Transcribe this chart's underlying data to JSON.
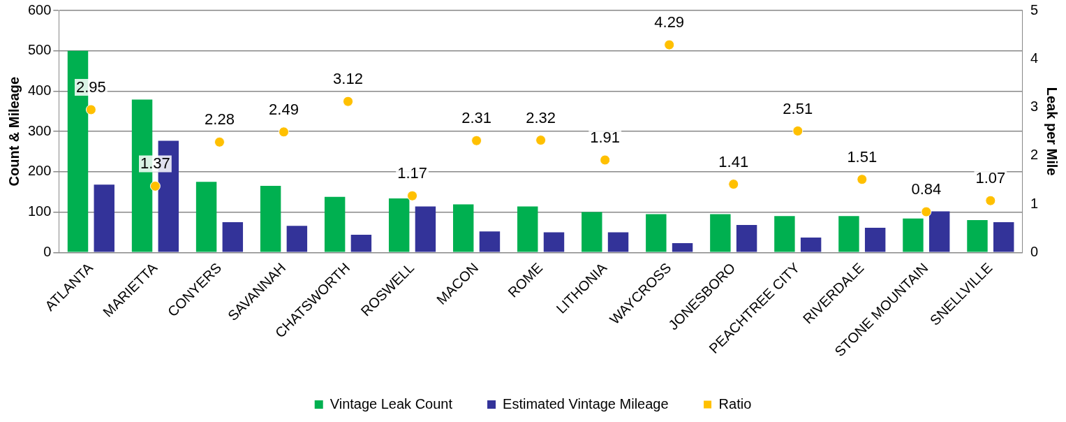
{
  "chart_data": {
    "type": "bar",
    "ylabel": "Count & Mileage",
    "y2label": "Leak per Mile",
    "categories": [
      "ATLANTA",
      "MARIETTA",
      "CONYERS",
      "SAVANNAH",
      "CHATSWORTH",
      "ROSWELL",
      "MACON",
      "ROME",
      "LITHONIA",
      "WAYCROSS",
      "JONESBORO",
      "PEACHTREE CITY",
      "RIVERDALE",
      "STONE MOUNTAIN",
      "SNELLVILLE"
    ],
    "series": [
      {
        "name": "Vintage Leak Count",
        "color": "#00b050",
        "values": [
          500,
          379,
          175,
          165,
          138,
          134,
          119,
          114,
          100,
          95,
          95,
          90,
          90,
          84,
          80
        ]
      },
      {
        "name": "Estimated Vintage Mileage",
        "color": "#333399",
        "values": [
          168,
          277,
          75,
          66,
          44,
          114,
          52,
          50,
          50,
          23,
          68,
          37,
          61,
          102,
          75
        ]
      },
      {
        "name": "Ratio",
        "type": "scatter",
        "axis": "y2",
        "color": "#ffc000",
        "data_labels": true,
        "values": [
          2.95,
          1.37,
          2.28,
          2.49,
          3.12,
          1.17,
          2.31,
          2.32,
          1.91,
          4.29,
          1.41,
          2.51,
          1.51,
          0.84,
          1.07
        ]
      }
    ],
    "ylim": [
      0,
      600
    ],
    "yticks": [
      0,
      100,
      200,
      300,
      400,
      500,
      600
    ],
    "y2lim": [
      0,
      5
    ],
    "y2ticks": [
      0,
      1,
      2,
      3,
      4,
      5
    ],
    "grid": "y",
    "legend": "bottom",
    "marker": "circle"
  }
}
